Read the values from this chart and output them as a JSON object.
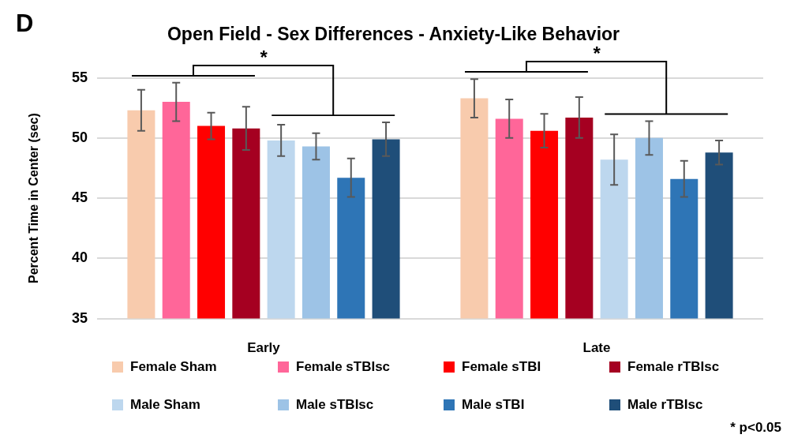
{
  "chart_data": {
    "type": "bar",
    "title": "Open Field - Sex Differences - Anxiety-Like Behavior",
    "ylabel": "Percent Time in Center (sec)",
    "categories": [
      "Early",
      "Late"
    ],
    "series": [
      {
        "name": "Female Sham",
        "color": "#f8cbad",
        "values": [
          52.3,
          53.3
        ],
        "errors": [
          1.7,
          1.6
        ]
      },
      {
        "name": "Female sTBIsc",
        "color": "#ff6699",
        "values": [
          53.0,
          51.6
        ],
        "errors": [
          1.6,
          1.6
        ]
      },
      {
        "name": "Female sTBI",
        "color": "#ff0000",
        "values": [
          51.0,
          50.6
        ],
        "errors": [
          1.1,
          1.4
        ]
      },
      {
        "name": "Female rTBIsc",
        "color": "#a50021",
        "values": [
          50.8,
          51.7
        ],
        "errors": [
          1.8,
          1.7
        ]
      },
      {
        "name": "Male Sham",
        "color": "#bdd7ee",
        "values": [
          49.8,
          48.2
        ],
        "errors": [
          1.3,
          2.1
        ]
      },
      {
        "name": "Male sTBIsc",
        "color": "#9dc3e6",
        "values": [
          49.3,
          50.0
        ],
        "errors": [
          1.1,
          1.4
        ]
      },
      {
        "name": "Male sTBI",
        "color": "#2e75b6",
        "values": [
          46.7,
          46.6
        ],
        "errors": [
          1.6,
          1.5
        ]
      },
      {
        "name": "Male rTBIsc",
        "color": "#1f4e79",
        "values": [
          49.9,
          48.8
        ],
        "errors": [
          1.4,
          1.0
        ]
      }
    ],
    "ylim": [
      35,
      55
    ],
    "yticks": [
      35,
      40,
      45,
      50,
      55
    ],
    "grid": "y",
    "legend": "bottom",
    "annotations": [
      "D",
      "*",
      "*",
      "* p<0.05"
    ]
  }
}
